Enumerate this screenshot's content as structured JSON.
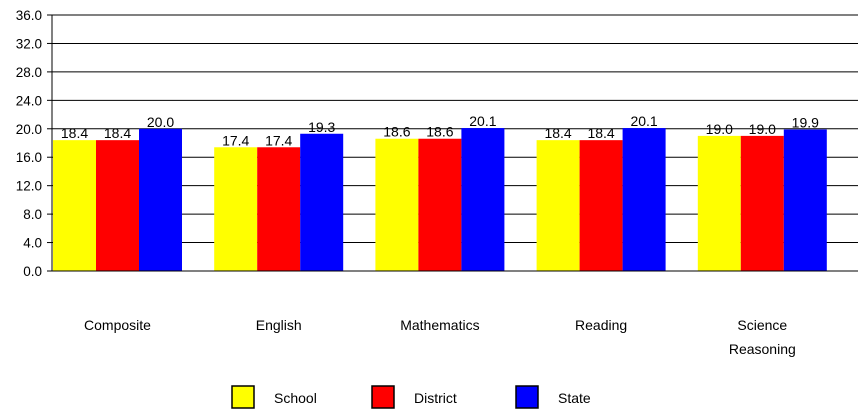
{
  "chart_data": {
    "type": "bar",
    "title": "",
    "xlabel": "",
    "ylabel": "",
    "categories": [
      "Composite",
      "English",
      "Mathematics",
      "Reading",
      "Science Reasoning"
    ],
    "category_lines": [
      [
        "Composite"
      ],
      [
        "English"
      ],
      [
        "Mathematics"
      ],
      [
        "Reading"
      ],
      [
        "Science",
        "Reasoning"
      ]
    ],
    "series": [
      {
        "name": "School",
        "color": "#FFFF00",
        "values": [
          18.4,
          17.4,
          18.6,
          18.4,
          19.0
        ],
        "labels": [
          "18.4",
          "17.4",
          "18.6",
          "18.4",
          "19.0"
        ]
      },
      {
        "name": "District",
        "color": "#FF0000",
        "values": [
          18.4,
          17.4,
          18.6,
          18.4,
          19.0
        ],
        "labels": [
          "18.4",
          "17.4",
          "18.6",
          "18.4",
          "19.0"
        ]
      },
      {
        "name": "State",
        "color": "#0000FF",
        "values": [
          20.0,
          19.3,
          20.1,
          20.1,
          19.9
        ],
        "labels": [
          "20.0",
          "19.3",
          "20.1",
          "20.1",
          "19.9"
        ]
      }
    ],
    "ylim": [
      0,
      36
    ],
    "yticks": [
      0,
      4,
      8,
      12,
      16,
      20,
      24,
      28,
      32,
      36
    ],
    "ytick_labels": [
      "0.0",
      "4.0",
      "8.0",
      "12.0",
      "16.0",
      "20.0",
      "24.0",
      "28.0",
      "32.0",
      "36.0"
    ],
    "grid": true,
    "legend_position": "bottom"
  }
}
